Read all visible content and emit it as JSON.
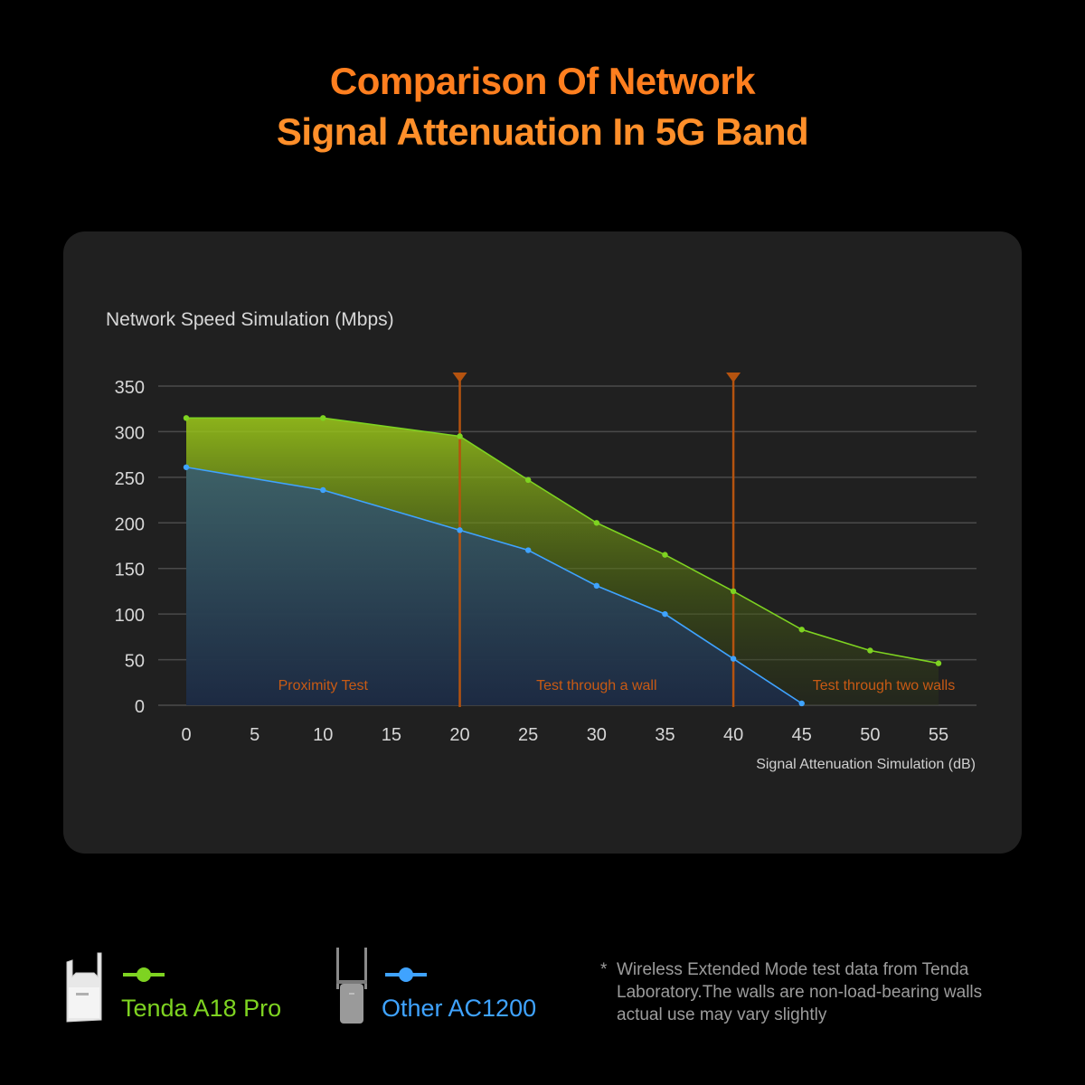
{
  "title": {
    "line1": "Comparison Of Network",
    "line2": "Signal Attenuation In 5G Band"
  },
  "colors": {
    "title": "#ff7f1f",
    "tenda": "#7ed321",
    "other": "#3fa3ff",
    "divider": "#b5530f",
    "zone_label": "#c85a14",
    "panel": "#202020"
  },
  "chart_data": {
    "type": "area",
    "title": "Network Speed Simulation (Mbps)",
    "xlabel": "Signal Attenuation Simulation (dB)",
    "ylabel": "Network Speed Simulation (Mbps)",
    "xlim": [
      0,
      55
    ],
    "ylim": [
      0,
      350
    ],
    "x_ticks": [
      0,
      5,
      10,
      15,
      20,
      25,
      30,
      35,
      40,
      45,
      50,
      55
    ],
    "y_ticks": [
      0,
      50,
      100,
      150,
      200,
      250,
      300,
      350
    ],
    "grid": true,
    "series": [
      {
        "name": "Tenda A18 Pro",
        "color": "#7ed321",
        "x": [
          0,
          10,
          20,
          25,
          30,
          35,
          40,
          45,
          50,
          55
        ],
        "values": [
          315,
          315,
          295,
          247,
          200,
          165,
          125,
          83,
          60,
          46
        ]
      },
      {
        "name": "Other AC1200",
        "color": "#3fa3ff",
        "x": [
          0,
          10,
          20,
          25,
          30,
          35,
          40,
          45
        ],
        "values": [
          261,
          236,
          192,
          170,
          131,
          100,
          51,
          2
        ]
      }
    ],
    "dividers": [
      20,
      40
    ],
    "zones": [
      {
        "label": "Proximity Test",
        "x": 10
      },
      {
        "label": "Test through a wall",
        "x": 30
      },
      {
        "label": "Test through two walls",
        "x": 51
      }
    ]
  },
  "legend": {
    "tenda": {
      "label": "Tenda A18 Pro",
      "icon": "tenda-a18-pro-device-icon"
    },
    "other": {
      "label": "Other AC1200",
      "icon": "ac1200-extender-device-icon"
    }
  },
  "footnote": {
    "star": "*",
    "line1": "Wireless Extended Mode test data from Tenda",
    "line2": "Laboratory.The walls are  non-load-bearing walls",
    "line3": "actual use may vary slightly"
  }
}
